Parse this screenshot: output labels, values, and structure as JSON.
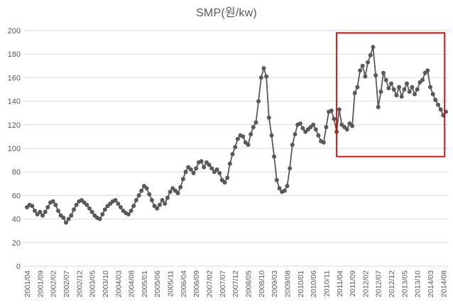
{
  "title": "SMP(원/kw)",
  "chart_data": {
    "type": "line",
    "title": "SMP(원/kw)",
    "unit": "won/kW",
    "x_start": "2001/04",
    "x_tick_step_months": 5,
    "x_tick_labels": [
      "2001/04",
      "2001/09",
      "2002/02",
      "2002/07",
      "2002/12",
      "2003/05",
      "2003/10",
      "2004/03",
      "2004/08",
      "2005/01",
      "2005/06",
      "2005/11",
      "2006/04",
      "2006/09",
      "2007/02",
      "2007/07",
      "2007/12",
      "2008/05",
      "2008/10",
      "2009/03",
      "2009/08",
      "2010/01",
      "2010/06",
      "2010/11",
      "2011/04",
      "2011/09",
      "2012/02",
      "2012/07",
      "2012/12",
      "2013/05",
      "2013/10",
      "2014/03",
      "2014/08"
    ],
    "ylim": [
      0,
      200
    ],
    "y_ticks": [
      0,
      20,
      40,
      60,
      80,
      100,
      120,
      140,
      160,
      180,
      200
    ],
    "grid": "horizontal-only",
    "legend": "none",
    "axis_text_color": "#595959",
    "grid_color": "#d9d9d9",
    "series": [
      {
        "name": "SMP",
        "color": "#595959",
        "marker": "circle",
        "values": [
          50,
          52,
          51,
          47,
          44,
          46,
          43,
          46,
          50,
          54,
          55,
          52,
          47,
          43,
          41,
          37,
          40,
          43,
          48,
          52,
          55,
          56,
          54,
          52,
          49,
          46,
          43,
          41,
          40,
          44,
          48,
          51,
          53,
          55,
          56,
          53,
          50,
          47,
          45,
          44,
          47,
          51,
          56,
          60,
          64,
          68,
          66,
          61,
          56,
          51,
          49,
          52,
          56,
          53,
          58,
          63,
          66,
          64,
          62,
          67,
          74,
          80,
          84,
          82,
          79,
          83,
          88,
          89,
          84,
          88,
          86,
          83,
          80,
          82,
          79,
          73,
          71,
          75,
          87,
          95,
          101,
          108,
          111,
          110,
          105,
          103,
          112,
          118,
          122,
          140,
          160,
          168,
          161,
          126,
          111,
          93,
          73,
          66,
          63,
          64,
          68,
          83,
          103,
          112,
          120,
          121,
          117,
          114,
          116,
          118,
          120,
          116,
          111,
          106,
          105,
          118,
          131,
          132,
          125,
          114,
          133,
          120,
          118,
          116,
          121,
          119,
          147,
          152,
          166,
          170,
          161,
          173,
          179,
          186,
          162,
          135,
          148,
          164,
          158,
          151,
          155,
          150,
          145,
          152,
          144,
          150,
          155,
          148,
          152,
          146,
          150,
          156,
          158,
          164,
          166,
          152,
          146,
          141,
          137,
          133,
          128,
          131
        ]
      }
    ],
    "annotations": [
      {
        "type": "box",
        "color": "#e00000",
        "from_index": 119,
        "to_index": 160.5,
        "value_min": 93,
        "value_max": 198
      }
    ]
  }
}
